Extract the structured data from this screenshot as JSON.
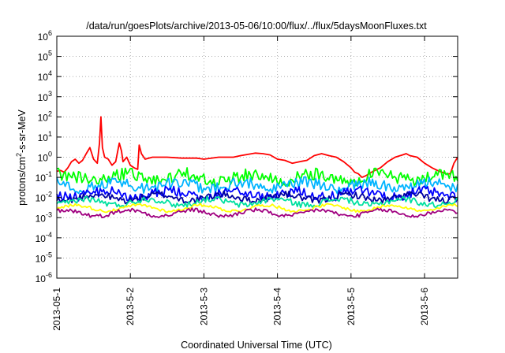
{
  "chart_data": {
    "type": "line",
    "title": "/data/run/goesPlots/archive/2013-05-06/10:00/flux/../flux/5daysMoonFluxes.txt",
    "xlabel": "Coordinated Universal Time (UTC)",
    "ylabel_parts": [
      "protons/cm",
      "2",
      "-s-sr-MeV"
    ],
    "x_tick_labels": [
      "2013-05-1",
      "2013-5-2",
      "2013-5-3",
      "2013-5-4",
      "2013-5-5",
      "2013-5-6"
    ],
    "x_tick_positions_days": [
      0,
      1,
      2,
      3,
      4,
      5
    ],
    "xlim_days": [
      0,
      5.45
    ],
    "y_scale": "log",
    "ylim_exponents": [
      -6,
      6
    ],
    "y_tick_exponents": [
      -6,
      -5,
      -4,
      -3,
      -2,
      -1,
      0,
      1,
      2,
      3,
      4,
      5,
      6
    ],
    "y_tick_base": "10",
    "grid": true,
    "series": [
      {
        "color": "#ff0000",
        "points": [
          [
            0,
            0.2
          ],
          [
            0.05,
            0.22
          ],
          [
            0.1,
            0.18
          ],
          [
            0.15,
            0.3
          ],
          [
            0.2,
            0.6
          ],
          [
            0.25,
            0.8
          ],
          [
            0.3,
            0.5
          ],
          [
            0.35,
            0.7
          ],
          [
            0.4,
            1.5
          ],
          [
            0.45,
            3
          ],
          [
            0.5,
            0.8
          ],
          [
            0.55,
            0.5
          ],
          [
            0.58,
            5
          ],
          [
            0.6,
            100
          ],
          [
            0.62,
            3
          ],
          [
            0.65,
            1
          ],
          [
            0.7,
            0.8
          ],
          [
            0.75,
            0.4
          ],
          [
            0.8,
            0.6
          ],
          [
            0.85,
            5
          ],
          [
            0.88,
            2
          ],
          [
            0.9,
            0.6
          ],
          [
            0.95,
            1
          ],
          [
            1.0,
            0.4
          ],
          [
            1.05,
            0.3
          ],
          [
            1.1,
            0.25
          ],
          [
            1.12,
            4
          ],
          [
            1.15,
            1.5
          ],
          [
            1.2,
            0.8
          ],
          [
            1.25,
            0.9
          ],
          [
            1.3,
            1
          ],
          [
            1.5,
            1
          ],
          [
            1.7,
            0.9
          ],
          [
            1.9,
            0.9
          ],
          [
            2.0,
            0.8
          ],
          [
            2.2,
            1
          ],
          [
            2.4,
            1
          ],
          [
            2.5,
            1.2
          ],
          [
            2.7,
            1.6
          ],
          [
            2.8,
            1.5
          ],
          [
            2.9,
            1.3
          ],
          [
            3.0,
            0.8
          ],
          [
            3.1,
            0.7
          ],
          [
            3.2,
            0.5
          ],
          [
            3.3,
            0.6
          ],
          [
            3.4,
            0.7
          ],
          [
            3.5,
            1.2
          ],
          [
            3.6,
            1.5
          ],
          [
            3.7,
            1.2
          ],
          [
            3.8,
            1
          ],
          [
            3.9,
            0.6
          ],
          [
            4.0,
            0.3
          ],
          [
            4.05,
            0.18
          ],
          [
            4.1,
            0.15
          ],
          [
            4.15,
            0.1
          ],
          [
            4.2,
            0.12
          ],
          [
            4.3,
            0.2
          ],
          [
            4.4,
            0.3
          ],
          [
            4.5,
            0.6
          ],
          [
            4.6,
            1
          ],
          [
            4.7,
            1.3
          ],
          [
            4.75,
            1.5
          ],
          [
            4.8,
            1.2
          ],
          [
            4.9,
            1
          ],
          [
            5.0,
            0.5
          ],
          [
            5.1,
            0.3
          ],
          [
            5.2,
            0.2
          ],
          [
            5.3,
            0.15
          ],
          [
            5.35,
            0.15
          ],
          [
            5.4,
            0.5
          ],
          [
            5.45,
            1
          ]
        ]
      },
      {
        "color": "#00ff00",
        "level": 0.1,
        "spread": 0.65
      },
      {
        "color": "#00b4ff",
        "level": 0.04,
        "spread": 0.55
      },
      {
        "color": "#0000ff",
        "level": 0.015,
        "spread": 0.5
      },
      {
        "color": "#0000a0",
        "level": 0.01,
        "spread": 0.35
      },
      {
        "color": "#00e0a0",
        "level": 0.006,
        "spread": 0.3
      },
      {
        "color": "#ffff00",
        "level": 0.003,
        "spread": 0.15
      },
      {
        "color": "#a00080",
        "level": 0.0017,
        "spread": 0.2
      }
    ]
  }
}
